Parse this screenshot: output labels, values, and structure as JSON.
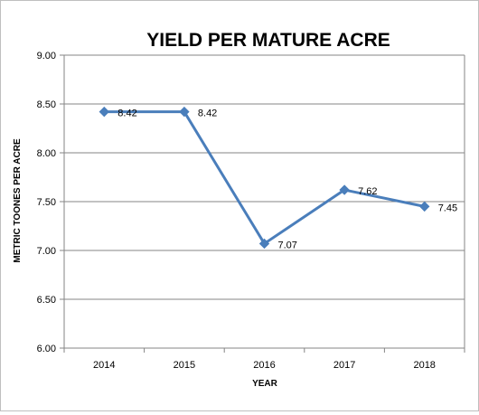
{
  "chart_data": {
    "type": "line",
    "title": "YIELD PER MATURE ACRE",
    "xlabel": "YEAR",
    "ylabel": "METRIC TOONES PER ACRE",
    "categories": [
      "2014",
      "2015",
      "2016",
      "2017",
      "2018"
    ],
    "series": [
      {
        "values": [
          8.42,
          8.42,
          7.07,
          7.62,
          7.45
        ],
        "color": "#4a7ebb",
        "marker": "diamond"
      }
    ],
    "data_labels": [
      "8.42",
      "8.42",
      "7.07",
      "7.62",
      "7.45"
    ],
    "ylim": [
      6.0,
      9.0
    ],
    "yticks": [
      "6.00",
      "6.50",
      "7.00",
      "7.50",
      "8.00",
      "8.50",
      "9.00"
    ],
    "grid": true,
    "legend": "none"
  }
}
